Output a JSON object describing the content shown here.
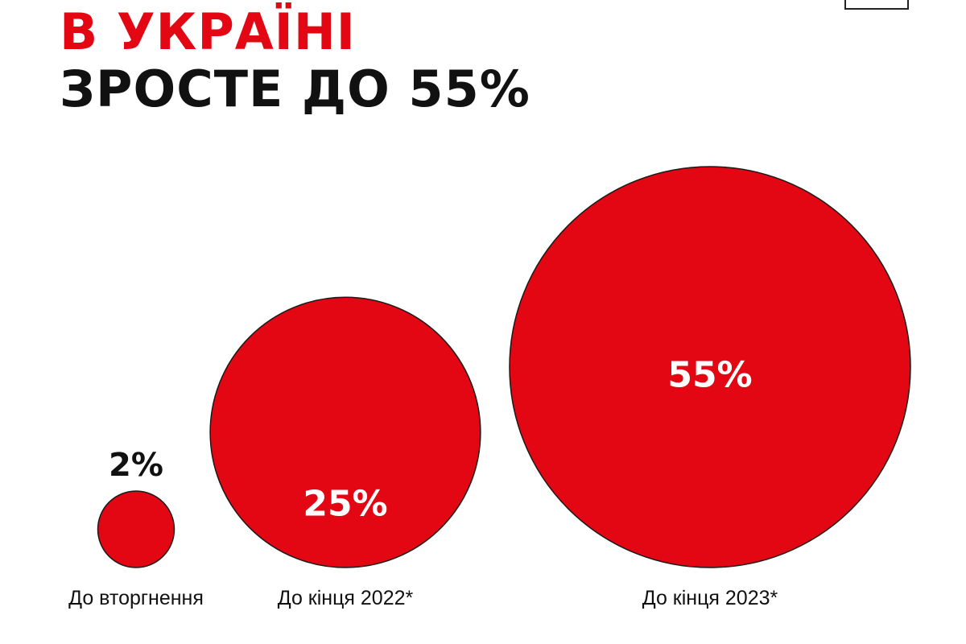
{
  "header": {
    "title_line_1": "В УКРАЇНІ",
    "title_line_2": "ЗРОСТЕ ДО 55%"
  },
  "colors": {
    "accent": "#e30613",
    "bubble_stroke": "#1a1a1a",
    "text_dark": "#111111",
    "text_light": "#ffffff"
  },
  "chart_data": {
    "type": "bubble",
    "categories": [
      "До вторгнення",
      "До кінця 2022*",
      "До кінця 2023*"
    ],
    "values": [
      2,
      25,
      55
    ],
    "value_labels": [
      "2%",
      "25%",
      "55%"
    ],
    "unit": "%"
  }
}
